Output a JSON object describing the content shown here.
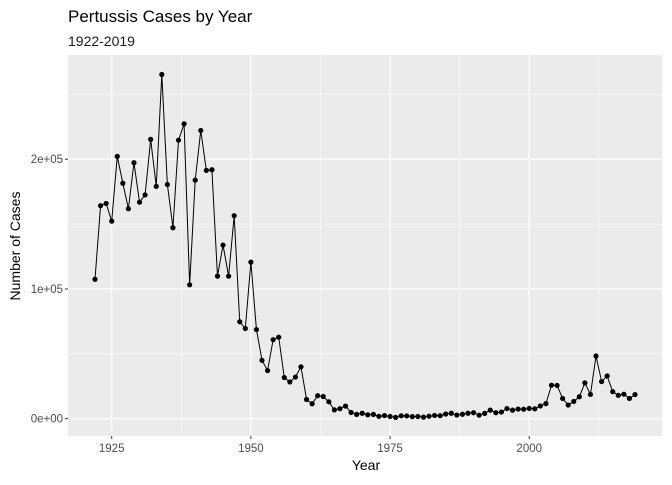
{
  "chart_data": {
    "type": "line",
    "title": "Pertussis Cases by Year",
    "subtitle": "1922-2019",
    "xlabel": "Year",
    "ylabel": "Number of Cases",
    "xlim": [
      1917.15,
      2023.85
    ],
    "ylim": [
      -13350,
      280350
    ],
    "x_ticks": [
      1925,
      1950,
      1975,
      2000
    ],
    "x_tick_labels": [
      "1925",
      "1950",
      "1975",
      "2000"
    ],
    "y_ticks": [
      0,
      100000,
      200000
    ],
    "y_tick_labels": [
      "0e+00",
      "1e+05",
      "2e+05"
    ],
    "grid": true,
    "legend": "none",
    "colors": {
      "panel_background": "#EBEBEB",
      "grid_major": "#FFFFFF",
      "line": "#000000",
      "points": "#000000"
    },
    "series": [
      {
        "x": [
          1922,
          1923,
          1924,
          1925,
          1926,
          1927,
          1928,
          1929,
          1930,
          1931,
          1932,
          1933,
          1934,
          1935,
          1936,
          1937,
          1938,
          1939,
          1940,
          1941,
          1942,
          1943,
          1944,
          1945,
          1946,
          1947,
          1948,
          1949,
          1950,
          1951,
          1952,
          1953,
          1954,
          1955,
          1956,
          1957,
          1958,
          1959,
          1960,
          1961,
          1962,
          1963,
          1964,
          1965,
          1966,
          1967,
          1968,
          1969,
          1970,
          1971,
          1972,
          1973,
          1974,
          1975,
          1976,
          1977,
          1978,
          1979,
          1980,
          1981,
          1982,
          1983,
          1984,
          1985,
          1986,
          1987,
          1988,
          1989,
          1990,
          1991,
          1992,
          1993,
          1994,
          1995,
          1996,
          1997,
          1998,
          1999,
          2000,
          2001,
          2002,
          2003,
          2004,
          2005,
          2006,
          2007,
          2008,
          2009,
          2010,
          2011,
          2012,
          2013,
          2014,
          2015,
          2016,
          2017,
          2018,
          2019
        ],
        "values": [
          107500,
          164200,
          165900,
          152300,
          202200,
          181500,
          161800,
          197300,
          166900,
          172500,
          215300,
          179100,
          265300,
          180500,
          147200,
          214700,
          227300,
          103200,
          183900,
          222200,
          191400,
          191900,
          109900,
          133800,
          109900,
          156500,
          74700,
          69500,
          120700,
          68700,
          45000,
          37100,
          60900,
          62800,
          31700,
          28300,
          32100,
          40000,
          14800,
          11500,
          17700,
          17100,
          13000,
          6800,
          7700,
          9700,
          4800,
          3300,
          4200,
          3000,
          3300,
          1800,
          2400,
          1700,
          1000,
          2200,
          2100,
          1600,
          1700,
          1200,
          1900,
          2500,
          2300,
          3600,
          4200,
          2800,
          3400,
          4200,
          4600,
          2700,
          4100,
          6600,
          4600,
          5100,
          7800,
          6600,
          7400,
          7300,
          7900,
          7600,
          9800,
          11600,
          25800,
          25600,
          15600,
          10500,
          13300,
          16900,
          27600,
          18700,
          48300,
          28600,
          32900,
          20800,
          18000,
          18900,
          15600,
          18600
        ]
      }
    ]
  }
}
